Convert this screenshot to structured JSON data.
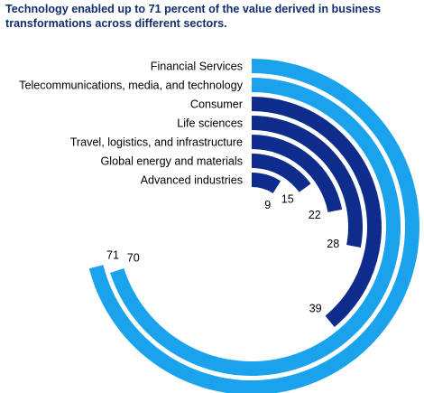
{
  "title": "Technology enabled up to 71 percent of the value derived in business transformations across different sectors.",
  "colors": {
    "light_blue": "#1aa3ec",
    "dark_blue": "#0d2c8c",
    "text": "#000000",
    "title": "#0f2e6b"
  },
  "chart_data": {
    "type": "radial-bar",
    "unit": "percent",
    "max_value": 100,
    "categories": [
      "Financial Services",
      "Telecommunications, media, and technology",
      "Consumer",
      "Life sciences",
      "Travel, logistics, and infrastructure",
      "Global energy and materials",
      "Advanced industries"
    ],
    "values": [
      71,
      70,
      39,
      28,
      22,
      15,
      9
    ],
    "value_labels": [
      "71",
      "70",
      "39",
      "28",
      "22",
      "15",
      "9"
    ],
    "bar_colors": [
      "light_blue",
      "light_blue",
      "dark_blue",
      "dark_blue",
      "dark_blue",
      "dark_blue",
      "dark_blue"
    ]
  }
}
